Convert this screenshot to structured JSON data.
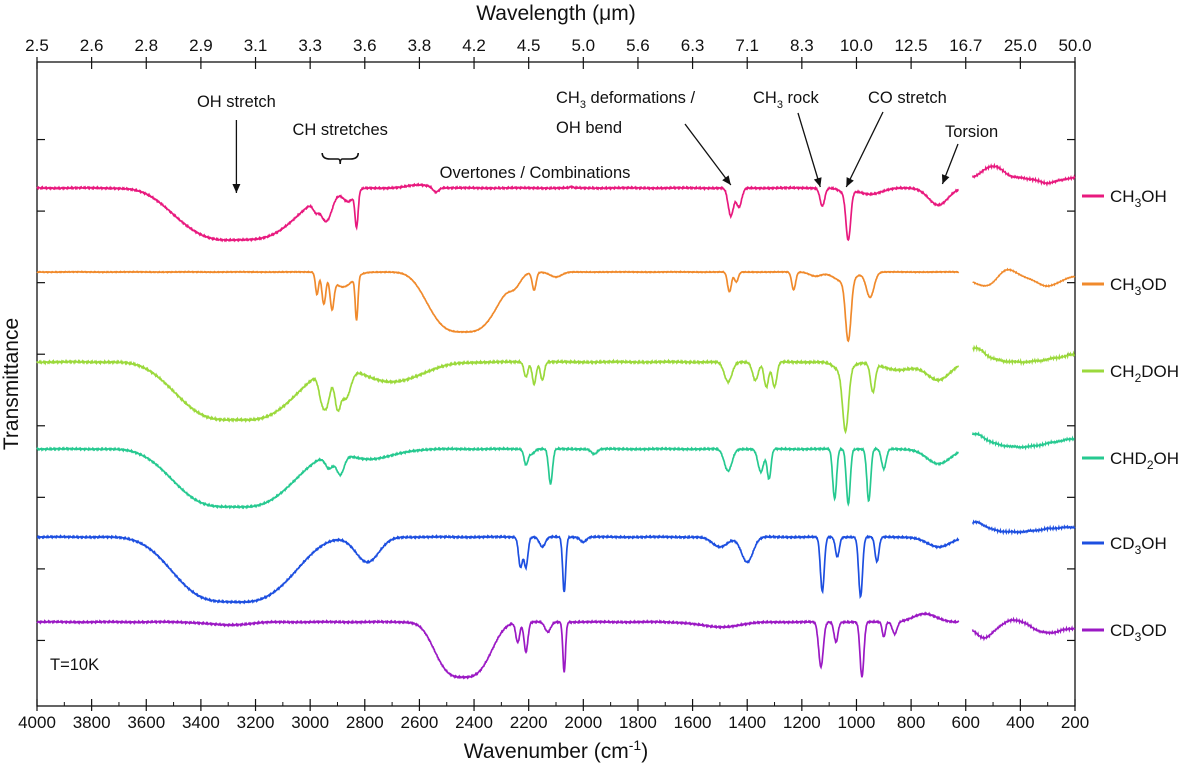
{
  "chart_data": {
    "type": "line",
    "title": "",
    "xlabel": "Wavenumber (cm⁻¹)",
    "xlabel_parts": [
      "Wavenumber (cm",
      "-1",
      ")"
    ],
    "x2label": "Wavelength (μm)",
    "ylabel": "Transmittance",
    "xlim": [
      4000,
      200
    ],
    "x_ticks": [
      4000,
      3800,
      3600,
      3400,
      3200,
      3000,
      2800,
      2600,
      2400,
      2200,
      2000,
      1800,
      1600,
      1400,
      1200,
      1000,
      800,
      600,
      400,
      200
    ],
    "x2_ticks": [
      "2.5",
      "2.6",
      "2.8",
      "2.9",
      "3.1",
      "3.3",
      "3.6",
      "3.8",
      "4.2",
      "4.5",
      "5.0",
      "5.6",
      "6.3",
      "7.1",
      "8.3",
      "10.0",
      "12.5",
      "16.7",
      "25.0",
      "50.0"
    ],
    "y_ticks_count": 8,
    "gap_cm1": [
      625,
      575
    ],
    "temperature_label": "T=10K",
    "series": [
      {
        "name": "CH₃OH",
        "label_parts": [
          "CH",
          "3",
          "OH"
        ],
        "color": "#e8197e",
        "baseline": 1.0,
        "features": [
          [
            3270,
            260,
            0.52,
            0.55
          ],
          [
            2980,
            14,
            0.08,
            0
          ],
          [
            2940,
            30,
            0.27,
            0
          ],
          [
            2830,
            8,
            0.35,
            0
          ],
          [
            2860,
            30,
            0.13,
            0
          ],
          [
            2600,
            60,
            -0.03,
            0
          ],
          [
            2540,
            15,
            0.05,
            0
          ],
          [
            2045,
            8,
            -0.01,
            0
          ],
          [
            1460,
            14,
            0.28,
            0
          ],
          [
            1430,
            14,
            0.19,
            0
          ],
          [
            1125,
            12,
            0.18,
            0
          ],
          [
            1030,
            12,
            0.47,
            0
          ],
          [
            1040,
            30,
            0.05,
            0
          ],
          [
            950,
            60,
            0.06,
            0
          ],
          [
            700,
            50,
            0.17,
            0
          ]
        ],
        "far_ir": [
          [
            500,
            50,
            -0.12,
            0
          ],
          [
            300,
            50,
            0.05,
            0
          ]
        ],
        "noise": 0.01
      },
      {
        "name": "CH₃OD",
        "label_parts": [
          "CH",
          "3",
          "OD"
        ],
        "color": "#f08a2c",
        "baseline": 2.0,
        "features": [
          [
            2975,
            8,
            0.22,
            0
          ],
          [
            2950,
            10,
            0.3,
            0
          ],
          [
            2920,
            10,
            0.3,
            0
          ],
          [
            2830,
            7,
            0.43,
            0
          ],
          [
            2880,
            50,
            0.15,
            0
          ],
          [
            2440,
            150,
            0.6,
            0.55
          ],
          [
            2250,
            30,
            0.1,
            0
          ],
          [
            2180,
            10,
            0.18,
            0
          ],
          [
            2100,
            30,
            0.05,
            0
          ],
          [
            1465,
            10,
            0.2,
            0
          ],
          [
            1440,
            10,
            0.1,
            0
          ],
          [
            1230,
            10,
            0.18,
            0
          ],
          [
            1150,
            30,
            0.04,
            0
          ],
          [
            1030,
            14,
            0.6,
            0
          ],
          [
            1045,
            50,
            0.1,
            0
          ],
          [
            950,
            20,
            0.25,
            0
          ]
        ],
        "far_ir": [
          [
            530,
            60,
            0.1,
            0
          ],
          [
            450,
            40,
            -0.08,
            0
          ],
          [
            300,
            60,
            0.1,
            0
          ]
        ],
        "noise": 0.005
      },
      {
        "name": "CH₂DOH",
        "label_parts": [
          "CH",
          "2",
          "DOH"
        ],
        "color": "#9bd93c",
        "baseline": 2.0,
        "features": [
          [
            3270,
            260,
            0.58,
            0.55
          ],
          [
            2960,
            15,
            0.16,
            0
          ],
          [
            2940,
            20,
            0.35,
            0
          ],
          [
            2900,
            15,
            0.35,
            0
          ],
          [
            2870,
            25,
            0.3,
            0
          ],
          [
            2700,
            150,
            0.2,
            0
          ],
          [
            2210,
            10,
            0.15,
            0
          ],
          [
            2180,
            10,
            0.22,
            0
          ],
          [
            2150,
            10,
            0.18,
            0
          ],
          [
            1470,
            20,
            0.2,
            0
          ],
          [
            1370,
            15,
            0.18,
            0
          ],
          [
            1330,
            12,
            0.25,
            0
          ],
          [
            1300,
            12,
            0.25,
            0
          ],
          [
            1040,
            15,
            0.6,
            0
          ],
          [
            1050,
            40,
            0.1,
            0
          ],
          [
            940,
            12,
            0.28,
            0
          ],
          [
            850,
            80,
            0.08,
            0
          ],
          [
            700,
            60,
            0.18,
            0
          ]
        ],
        "far_ir": [
          [
            560,
            40,
            -0.08,
            0
          ],
          [
            400,
            200,
            0.12,
            0
          ]
        ],
        "noise": 0.012
      },
      {
        "name": "CHD₂OH",
        "label_parts": [
          "CHD",
          "2",
          "OH"
        ],
        "color": "#26c990",
        "baseline": 2.0,
        "features": [
          [
            3280,
            260,
            0.58,
            0.55
          ],
          [
            2930,
            20,
            0.13,
            0
          ],
          [
            2890,
            20,
            0.2,
            0
          ],
          [
            2780,
            120,
            0.1,
            0
          ],
          [
            2210,
            10,
            0.15,
            0
          ],
          [
            2120,
            10,
            0.35,
            0
          ],
          [
            2190,
            15,
            0.05,
            0
          ],
          [
            1960,
            15,
            0.05,
            0
          ],
          [
            1470,
            20,
            0.22,
            0
          ],
          [
            1350,
            15,
            0.23,
            0
          ],
          [
            1320,
            10,
            0.3,
            0
          ],
          [
            1080,
            10,
            0.5,
            0
          ],
          [
            1030,
            10,
            0.55,
            0
          ],
          [
            955,
            10,
            0.52,
            0
          ],
          [
            900,
            12,
            0.2,
            0
          ],
          [
            700,
            60,
            0.15,
            0
          ]
        ],
        "far_ir": [
          [
            560,
            40,
            -0.06,
            0
          ],
          [
            400,
            150,
            0.1,
            0
          ]
        ],
        "noise": 0.01
      },
      {
        "name": "CD₃OH",
        "label_parts": [
          "CD",
          "3",
          "OH"
        ],
        "color": "#1d4fe0",
        "baseline": 2.0,
        "features": [
          [
            3280,
            260,
            0.65,
            0.55
          ],
          [
            2790,
            60,
            0.25,
            0
          ],
          [
            2230,
            10,
            0.3,
            0
          ],
          [
            2210,
            10,
            0.3,
            0
          ],
          [
            2070,
            8,
            0.55,
            0
          ],
          [
            2150,
            15,
            0.1,
            0
          ],
          [
            2000,
            15,
            0.05,
            0
          ],
          [
            1500,
            40,
            0.1,
            0
          ],
          [
            1400,
            30,
            0.25,
            0
          ],
          [
            1125,
            10,
            0.55,
            0
          ],
          [
            1070,
            10,
            0.2,
            0
          ],
          [
            985,
            10,
            0.6,
            0
          ],
          [
            925,
            10,
            0.25,
            0
          ],
          [
            700,
            60,
            0.1,
            0
          ]
        ],
        "far_ir": [
          [
            560,
            40,
            -0.06,
            0
          ],
          [
            420,
            120,
            0.05,
            0
          ]
        ],
        "noise": 0.01
      },
      {
        "name": "CD₃OD",
        "label_parts": [
          "CD",
          "3",
          "OD"
        ],
        "color": "#9b19c4",
        "baseline": 1.0,
        "features": [
          [
            3300,
            100,
            0.03,
            0
          ],
          [
            2440,
            120,
            0.55,
            0.5
          ],
          [
            2240,
            10,
            0.2,
            0
          ],
          [
            2210,
            10,
            0.3,
            0
          ],
          [
            2070,
            7,
            0.5,
            0
          ],
          [
            2130,
            15,
            0.1,
            0
          ],
          [
            1500,
            100,
            0.05,
            0
          ],
          [
            1130,
            12,
            0.45,
            0
          ],
          [
            1075,
            10,
            0.2,
            0
          ],
          [
            980,
            10,
            0.55,
            0
          ],
          [
            900,
            8,
            0.15,
            0
          ],
          [
            860,
            12,
            0.12,
            0
          ],
          [
            750,
            60,
            -0.08,
            0
          ]
        ],
        "far_ir": [
          [
            530,
            40,
            0.1,
            0
          ],
          [
            420,
            60,
            -0.08,
            0
          ],
          [
            300,
            60,
            0.05,
            0
          ]
        ],
        "noise": 0.01
      }
    ],
    "annotations": [
      {
        "text_parts": [
          "OH stretch"
        ],
        "x_cm1": 3270,
        "series": 0
      },
      {
        "text_parts": [
          "CH stretches"
        ],
        "x_cm1": 2890,
        "series": 0
      },
      {
        "text_parts": [
          "Overtones / Combinations"
        ],
        "x_cm1": 2000,
        "series": 0
      },
      {
        "text_parts": [
          "CH",
          "3",
          " deformations /"
        ],
        "text2": "OH bend",
        "x_cm1": 1460,
        "series": 0
      },
      {
        "text_parts": [
          "CH",
          "3",
          " rock"
        ],
        "x_cm1": 1125,
        "series": 0
      },
      {
        "text_parts": [
          "CO stretch"
        ],
        "x_cm1": 1030,
        "series": 0
      },
      {
        "text_parts": [
          "Torsion"
        ],
        "x_cm1": 700,
        "series": 0
      }
    ]
  }
}
